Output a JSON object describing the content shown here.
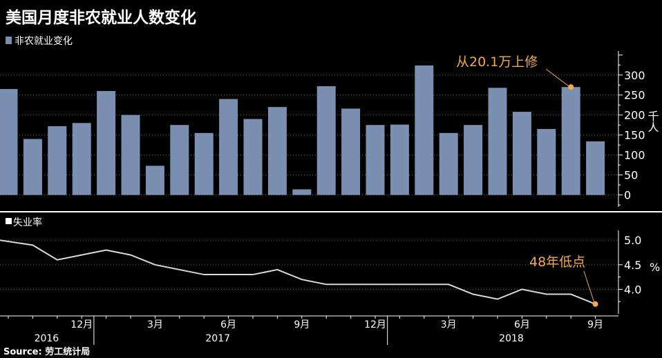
{
  "title": "美国月度非农就业人数变化",
  "source": "Source: 劳工统计局",
  "colors": {
    "background": "#000000",
    "bar": "#7b8fb0",
    "line": "#d9d9d9",
    "accent": "#f5a94a",
    "axis": "#ffffff",
    "grid": "#666666",
    "divider": "#ffffff"
  },
  "chart_data": [
    {
      "type": "bar",
      "legend": "非农就业变化",
      "ylabel": "千人",
      "ylim": [
        -30,
        360
      ],
      "yticks": [
        0,
        50,
        100,
        150,
        200,
        250,
        300
      ],
      "categories": [
        "2016-09",
        "2016-10",
        "2016-11",
        "2016-12",
        "2017-01",
        "2017-02",
        "2017-03",
        "2017-04",
        "2017-05",
        "2017-06",
        "2017-07",
        "2017-08",
        "2017-09",
        "2017-10",
        "2017-11",
        "2017-12",
        "2018-01",
        "2018-02",
        "2018-03",
        "2018-04",
        "2018-05",
        "2018-06",
        "2018-07",
        "2018-08",
        "2018-09"
      ],
      "series": [
        {
          "values": [
            265,
            140,
            172,
            180,
            260,
            200,
            73,
            175,
            155,
            240,
            190,
            220,
            14,
            272,
            216,
            175,
            176,
            324,
            155,
            175,
            268,
            208,
            165,
            270,
            134
          ]
        }
      ],
      "annotation": {
        "text": "从20.1万上修",
        "index": 23,
        "value": 270
      }
    },
    {
      "type": "line",
      "legend": "失业率",
      "ylabel": "%",
      "ylim": [
        3.5,
        5.2
      ],
      "yticks": [
        4.0,
        4.5,
        5.0
      ],
      "ytick_labels": [
        "4.0",
        "4.5",
        "5.0"
      ],
      "categories": [
        "2016-09",
        "2016-10",
        "2016-11",
        "2016-12",
        "2017-01",
        "2017-02",
        "2017-03",
        "2017-04",
        "2017-05",
        "2017-06",
        "2017-07",
        "2017-08",
        "2017-09",
        "2017-10",
        "2017-11",
        "2017-12",
        "2018-01",
        "2018-02",
        "2018-03",
        "2018-04",
        "2018-05",
        "2018-06",
        "2018-07",
        "2018-08",
        "2018-09"
      ],
      "series": [
        {
          "values": [
            5.0,
            4.9,
            4.6,
            4.7,
            4.8,
            4.7,
            4.5,
            4.4,
            4.3,
            4.3,
            4.3,
            4.4,
            4.2,
            4.1,
            4.1,
            4.1,
            4.1,
            4.1,
            4.1,
            3.9,
            3.8,
            4.0,
            3.9,
            3.9,
            3.7
          ]
        }
      ],
      "annotation": {
        "text": "48年低点",
        "index": 24,
        "value": 3.7
      }
    }
  ],
  "x_axis": {
    "month_labels": [
      {
        "index": 3,
        "label": "12月"
      },
      {
        "index": 6,
        "label": "3月"
      },
      {
        "index": 9,
        "label": "6月"
      },
      {
        "index": 12,
        "label": "9月"
      },
      {
        "index": 15,
        "label": "12月"
      },
      {
        "index": 18,
        "label": "3月"
      },
      {
        "index": 21,
        "label": "6月"
      },
      {
        "index": 24,
        "label": "9月"
      }
    ],
    "year_labels": [
      {
        "index": 1,
        "label": "2016"
      },
      {
        "index": 8,
        "label": "2017"
      },
      {
        "index": 20,
        "label": "2018"
      }
    ],
    "year_separators": [
      3.5,
      15.5
    ]
  }
}
